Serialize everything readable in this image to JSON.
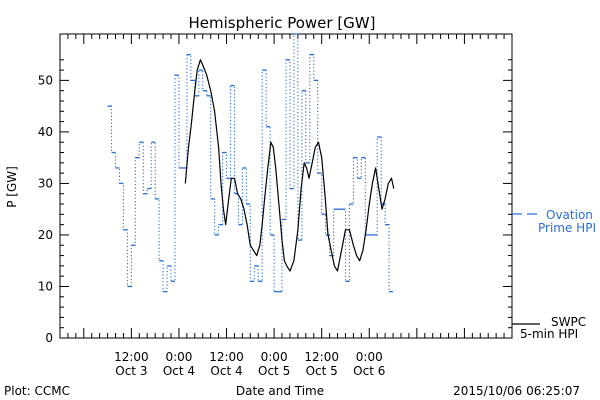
{
  "chart_data": {
    "type": "line",
    "title": "Hemispheric Power [GW]",
    "xlabel": "Date and Time",
    "ylabel": "P [GW]",
    "ylim": [
      0,
      59
    ],
    "x_unit": "hours (relative)",
    "xlim": [
      -15,
      42
    ],
    "yticks": [
      0,
      10,
      20,
      30,
      40,
      50
    ],
    "xticks": [
      {
        "x": -6,
        "line1": "12:00",
        "line2": "Oct 3"
      },
      {
        "x": 0,
        "line1": "0:00",
        "line2": "Oct 4"
      },
      {
        "x": 6,
        "line1": "12:00",
        "line2": "Oct 4"
      },
      {
        "x": 12,
        "line1": "0:00",
        "line2": "Oct 5"
      },
      {
        "x": 18,
        "line1": "12:00",
        "line2": "Oct 5"
      },
      {
        "x": 24,
        "line1": "0:00",
        "line2": "Oct 6"
      }
    ],
    "grid": false,
    "legend_position": "right",
    "series": [
      {
        "name": "Ovation Prime HPI",
        "legend_line1": "Ovation",
        "legend_line2": "Prime HPI",
        "color": "#2a6fd6",
        "style": "dotted-step",
        "points": [
          [
            -9.0,
            45
          ],
          [
            -8.5,
            36
          ],
          [
            -8.0,
            33
          ],
          [
            -7.5,
            30
          ],
          [
            -7.0,
            21
          ],
          [
            -6.5,
            10
          ],
          [
            -6.0,
            18
          ],
          [
            -5.5,
            35
          ],
          [
            -5.0,
            38
          ],
          [
            -4.5,
            28
          ],
          [
            -4.0,
            29
          ],
          [
            -3.5,
            38
          ],
          [
            -3.0,
            27
          ],
          [
            -2.5,
            15
          ],
          [
            -2.0,
            9
          ],
          [
            -1.5,
            14
          ],
          [
            -1.0,
            11
          ],
          [
            -0.5,
            51
          ],
          [
            0.0,
            33
          ],
          [
            0.5,
            33
          ],
          [
            1.0,
            55
          ],
          [
            1.5,
            50
          ],
          [
            2.0,
            47
          ],
          [
            2.5,
            52
          ],
          [
            3.0,
            48
          ],
          [
            3.5,
            47
          ],
          [
            4.0,
            27
          ],
          [
            4.5,
            20
          ],
          [
            5.0,
            22
          ],
          [
            5.5,
            36
          ],
          [
            6.0,
            31
          ],
          [
            6.5,
            49
          ],
          [
            7.0,
            28
          ],
          [
            7.5,
            22
          ],
          [
            8.0,
            33
          ],
          [
            8.5,
            26
          ],
          [
            9.0,
            11
          ],
          [
            9.5,
            14
          ],
          [
            10.0,
            11
          ],
          [
            10.5,
            52
          ],
          [
            11.0,
            41
          ],
          [
            11.5,
            20
          ],
          [
            12.0,
            9
          ],
          [
            12.5,
            9
          ],
          [
            13.0,
            23
          ],
          [
            13.5,
            54
          ],
          [
            14.0,
            29
          ],
          [
            14.5,
            59
          ],
          [
            15.0,
            19
          ],
          [
            15.5,
            48
          ],
          [
            16.0,
            34
          ],
          [
            16.5,
            55
          ],
          [
            17.0,
            50
          ],
          [
            17.5,
            32
          ],
          [
            18.0,
            24
          ],
          [
            18.5,
            20
          ],
          [
            19.0,
            16
          ],
          [
            19.5,
            25
          ],
          [
            20.0,
            25
          ],
          [
            20.5,
            25
          ],
          [
            21.0,
            11
          ],
          [
            21.5,
            26
          ],
          [
            22.0,
            35
          ],
          [
            22.5,
            31
          ],
          [
            23.0,
            35
          ],
          [
            23.5,
            20
          ],
          [
            24.0,
            20
          ],
          [
            24.5,
            20
          ],
          [
            25.0,
            39
          ],
          [
            25.5,
            26
          ],
          [
            26.0,
            22
          ],
          [
            26.5,
            9
          ]
        ]
      },
      {
        "name": "SWPC 5-min HPI",
        "legend_line1": "SWPC",
        "legend_line2": "5-min HPI",
        "color": "#000000",
        "style": "solid",
        "points": [
          [
            0.8,
            30
          ],
          [
            1.2,
            37
          ],
          [
            1.6,
            42
          ],
          [
            2.0,
            48
          ],
          [
            2.3,
            52
          ],
          [
            2.7,
            54
          ],
          [
            3.0,
            53
          ],
          [
            3.5,
            51
          ],
          [
            4.0,
            48
          ],
          [
            4.5,
            44
          ],
          [
            5.0,
            37
          ],
          [
            5.3,
            30
          ],
          [
            5.6,
            25
          ],
          [
            5.9,
            22
          ],
          [
            6.2,
            26
          ],
          [
            6.6,
            31
          ],
          [
            7.0,
            31
          ],
          [
            7.4,
            28
          ],
          [
            7.8,
            27
          ],
          [
            8.2,
            25
          ],
          [
            8.6,
            22
          ],
          [
            9.0,
            18
          ],
          [
            9.4,
            17
          ],
          [
            9.8,
            16
          ],
          [
            10.2,
            18
          ],
          [
            10.5,
            22
          ],
          [
            10.8,
            27
          ],
          [
            11.2,
            33
          ],
          [
            11.6,
            38
          ],
          [
            11.9,
            37
          ],
          [
            12.2,
            33
          ],
          [
            12.6,
            26
          ],
          [
            13.0,
            19
          ],
          [
            13.3,
            15
          ],
          [
            13.6,
            14
          ],
          [
            14.0,
            13
          ],
          [
            14.5,
            15
          ],
          [
            15.0,
            21
          ],
          [
            15.4,
            29
          ],
          [
            15.8,
            34
          ],
          [
            16.1,
            33
          ],
          [
            16.4,
            31
          ],
          [
            16.8,
            34
          ],
          [
            17.2,
            37
          ],
          [
            17.6,
            38
          ],
          [
            18.0,
            35
          ],
          [
            18.4,
            28
          ],
          [
            18.8,
            20
          ],
          [
            19.2,
            17
          ],
          [
            19.6,
            14
          ],
          [
            20.0,
            13
          ],
          [
            20.5,
            17
          ],
          [
            21.0,
            21
          ],
          [
            21.5,
            21
          ],
          [
            22.0,
            18
          ],
          [
            22.4,
            16
          ],
          [
            22.8,
            15
          ],
          [
            23.2,
            17
          ],
          [
            23.6,
            21
          ],
          [
            24.0,
            26
          ],
          [
            24.4,
            30
          ],
          [
            24.8,
            33
          ],
          [
            25.2,
            29
          ],
          [
            25.6,
            25
          ],
          [
            26.0,
            27
          ],
          [
            26.4,
            30
          ],
          [
            26.8,
            31
          ],
          [
            27.1,
            29
          ]
        ]
      }
    ]
  },
  "footer": {
    "left": "Plot: CCMC",
    "center": "Date and Time",
    "right": "2015/10/06 06:25:07"
  }
}
